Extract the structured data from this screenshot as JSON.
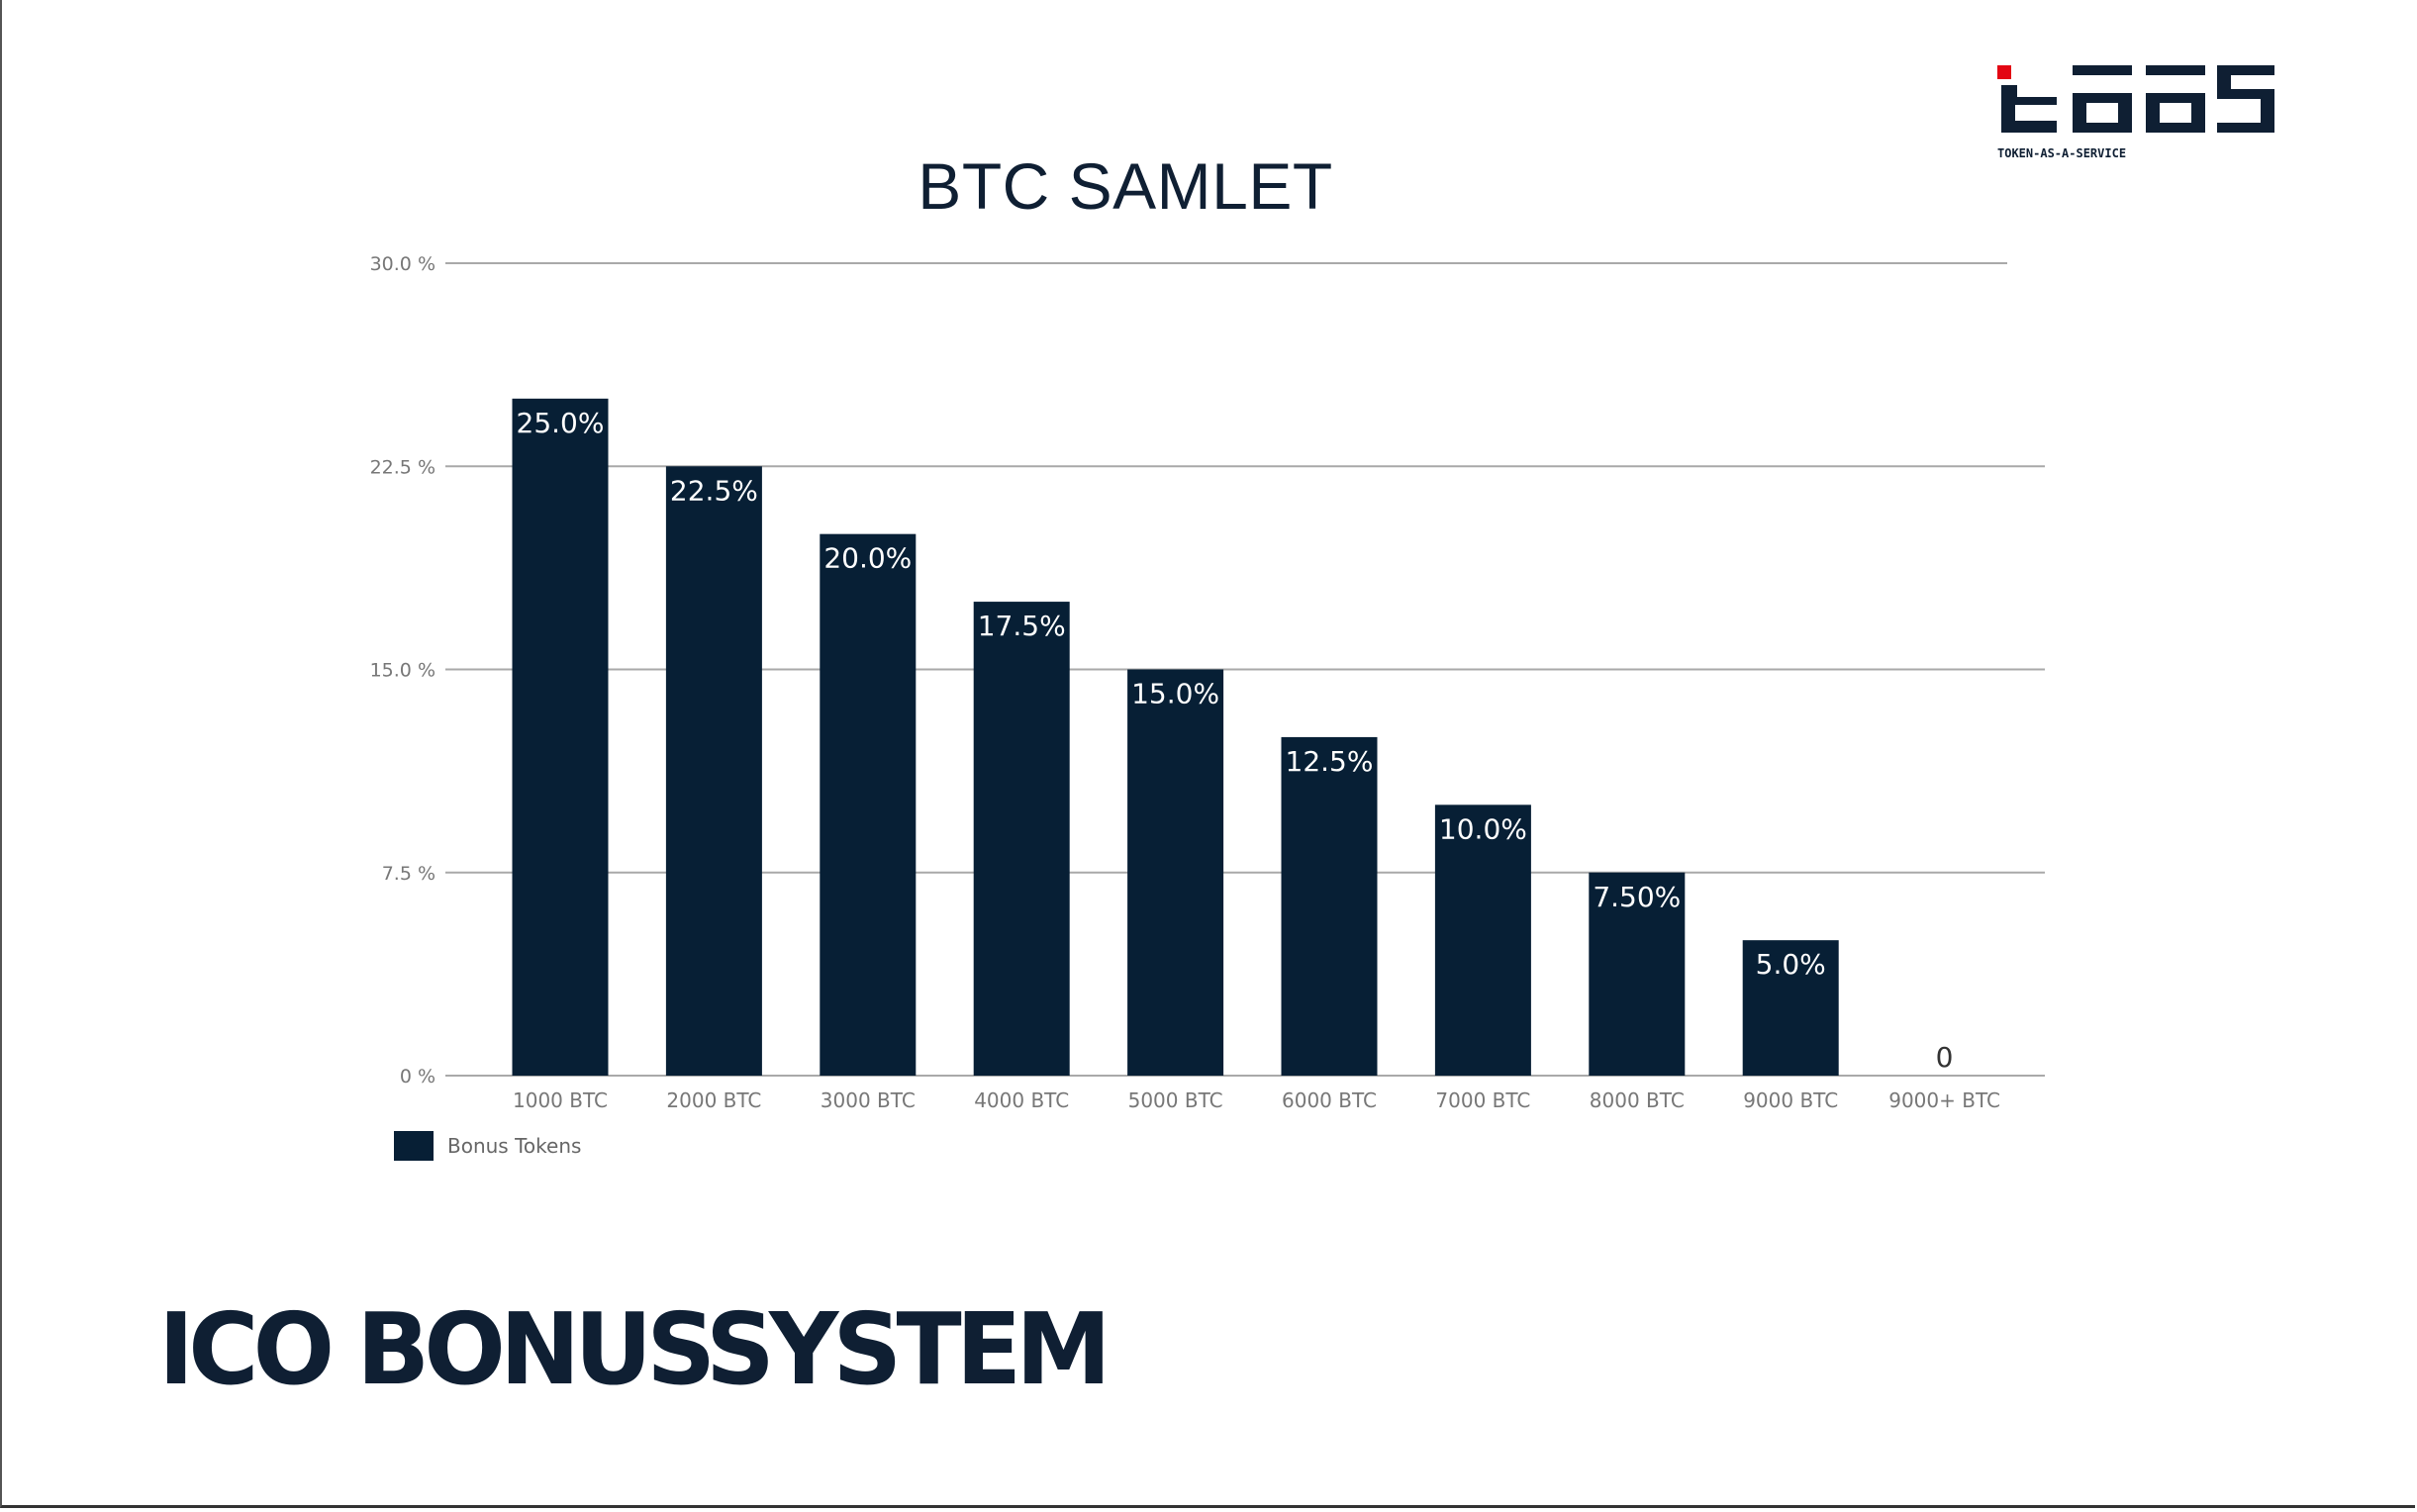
{
  "logo": {
    "caption": "TOKEN-AS-A-SERVICE",
    "accent_color": "#e30613"
  },
  "chart_title": "BTC SAMLET",
  "footer_title": "ICO BONUSSYSTEM",
  "chart_data": {
    "type": "bar",
    "title": "BTC SAMLET",
    "categories": [
      "1000 BTC",
      "2000 BTC",
      "3000 BTC",
      "4000 BTC",
      "5000 BTC",
      "6000 BTC",
      "7000 BTC",
      "8000 BTC",
      "9000 BTC",
      "9000+ BTC"
    ],
    "series": [
      {
        "name": "Bonus Tokens",
        "values": [
          25.0,
          22.5,
          20.0,
          17.5,
          15.0,
          12.5,
          10.0,
          7.5,
          5.0,
          0
        ],
        "data_labels": [
          "25.0%",
          "22.5%",
          "20.0%",
          "17.5%",
          "15.0%",
          "12.5%",
          "10.0%",
          "7.50%",
          "5.0%",
          "0"
        ],
        "color": "#071f35"
      }
    ],
    "y_ticks": [
      {
        "value": 0,
        "label": "0 %"
      },
      {
        "value": 7.5,
        "label": "7.5 %"
      },
      {
        "value": 15.0,
        "label": "15.0 %"
      },
      {
        "value": 22.5,
        "label": "22.5 %"
      },
      {
        "value": 30.0,
        "label": "30.0 %"
      }
    ],
    "ylim": [
      0,
      30
    ],
    "grid": true,
    "legend_position": "bottom-left",
    "xlabel": "",
    "ylabel": ""
  }
}
